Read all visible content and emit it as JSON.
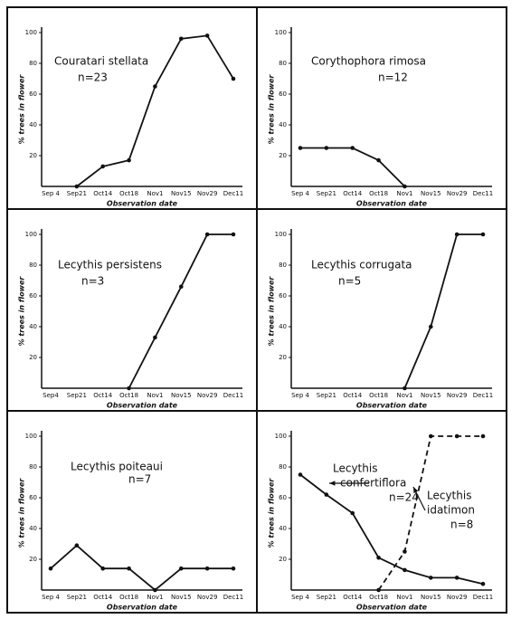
{
  "chart_data": [
    {
      "type": "line",
      "title": "Couratari stellata",
      "subtitle": "n=23",
      "ylabel": "% trees in flower",
      "xlabel": "Observation date",
      "categories": [
        "Sep 4",
        "Sep21",
        "Oct14",
        "Oct18",
        "Nov1",
        "Nov15",
        "Nov29",
        "Dec11"
      ],
      "series": [
        {
          "color": "#111111",
          "values": [
            null,
            0,
            13,
            17,
            65,
            96,
            98,
            70
          ]
        }
      ],
      "ylim": [
        0,
        100
      ],
      "yticks": [
        20,
        40,
        60,
        80,
        100
      ]
    },
    {
      "type": "line",
      "title": "Corythophora rimosa",
      "subtitle": "n=12",
      "ylabel": "% trees in flower",
      "xlabel": "Observation date",
      "categories": [
        "Sep 4",
        "Sep21",
        "Oct14",
        "Oct18",
        "Nov1",
        "Nov15",
        "Nov29",
        "Dec11"
      ],
      "series": [
        {
          "color": "#111111",
          "values": [
            25,
            25,
            25,
            17,
            0,
            null,
            null,
            null
          ]
        }
      ],
      "ylim": [
        0,
        100
      ],
      "yticks": [
        20,
        40,
        60,
        80,
        100
      ]
    },
    {
      "type": "line",
      "title": "Lecythis persistens",
      "subtitle": "n=3",
      "ylabel": "% trees in flower",
      "xlabel": "Observation date",
      "categories": [
        "Sep4",
        "Sep21",
        "Oct14",
        "Oct18",
        "Nov1",
        "Nov15",
        "Nov29",
        "Dec11"
      ],
      "series": [
        {
          "color": "#111111",
          "values": [
            null,
            null,
            null,
            0,
            33,
            66,
            100,
            100
          ]
        }
      ],
      "ylim": [
        0,
        100
      ],
      "yticks": [
        20,
        40,
        60,
        80,
        100
      ]
    },
    {
      "type": "line",
      "title": "Lecythis corrugata",
      "subtitle": "n=5",
      "ylabel": "% trees in flower",
      "xlabel": "Observation date",
      "categories": [
        "Sep 4",
        "Sep21",
        "Oct14",
        "Oct18",
        "Nov1",
        "Nov15",
        "Nov29",
        "Dec11"
      ],
      "series": [
        {
          "color": "#111111",
          "values": [
            null,
            null,
            null,
            null,
            0,
            40,
            100,
            100
          ]
        }
      ],
      "ylim": [
        0,
        100
      ],
      "yticks": [
        20,
        40,
        60,
        80,
        100
      ]
    },
    {
      "type": "line",
      "title": "Lecythis poiteaui",
      "subtitle": "n=7",
      "ylabel": "% trees in flower",
      "xlabel": "Observation date",
      "categories": [
        "Sep 4",
        "Sep21",
        "Oct14",
        "Oct18",
        "Nov1",
        "Nov15",
        "Nov29",
        "Dec11"
      ],
      "series": [
        {
          "color": "#111111",
          "values": [
            14,
            29,
            14,
            14,
            0,
            14,
            14,
            14
          ]
        }
      ],
      "ylim": [
        0,
        100
      ],
      "yticks": [
        20,
        40,
        60,
        80,
        100
      ]
    },
    {
      "type": "line",
      "ylabel": "% trees in flower",
      "xlabel": "Observation date",
      "categories": [
        "Sep 4",
        "Sep21",
        "Oct14",
        "Oct18",
        "Nov1",
        "Nov15",
        "Nov29",
        "Dec11"
      ],
      "series": [
        {
          "name_lines": [
            "Lecythis",
            "confertiflora"
          ],
          "count": "n=24",
          "color": "#111111",
          "dashed": false,
          "values": [
            75,
            62,
            50,
            21,
            13,
            8,
            8,
            4
          ]
        },
        {
          "name_lines": [
            "Lecythis",
            "idatimon"
          ],
          "count": "n=8",
          "color": "#111111",
          "dashed": true,
          "values": [
            null,
            null,
            null,
            0,
            25,
            100,
            100,
            100
          ]
        }
      ],
      "ylim": [
        0,
        100
      ],
      "yticks": [
        20,
        40,
        60,
        80,
        100
      ]
    }
  ]
}
